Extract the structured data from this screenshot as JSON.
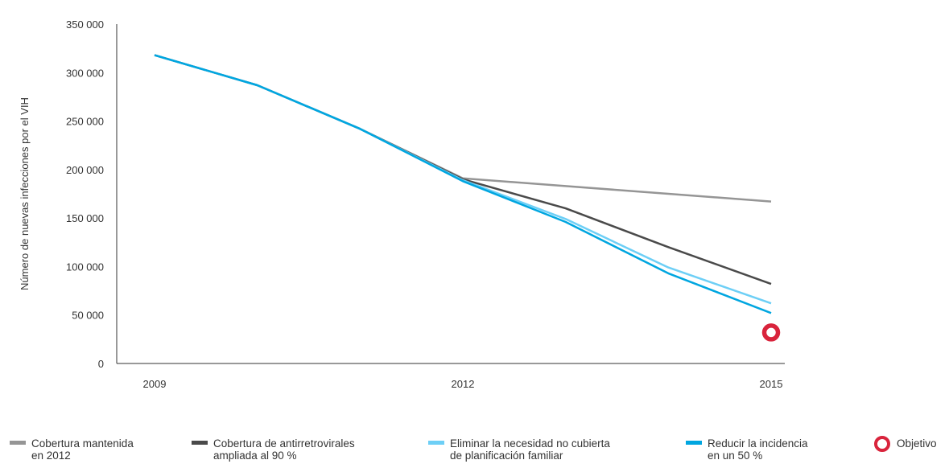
{
  "chart_data": {
    "type": "line",
    "ylabel": "Número de nuevas infecciones por el VIH",
    "xlabel": "",
    "title": "",
    "x": [
      2009,
      2010,
      2011,
      2012,
      2013,
      2014,
      2015
    ],
    "x_tick_labels": [
      "2009",
      "2012",
      "2015"
    ],
    "x_tick_values": [
      2009,
      2012,
      2015
    ],
    "ylim": [
      0,
      350000
    ],
    "y_ticks": [
      0,
      50000,
      100000,
      150000,
      200000,
      250000,
      300000,
      350000
    ],
    "y_tick_labels": [
      "0",
      "50 000",
      "100 000",
      "150 000",
      "200 000",
      "250 000",
      "300 000",
      "350 000"
    ],
    "grid": false,
    "legend_position": "bottom",
    "series": [
      {
        "name": "Cobertura mantenida\nen 2012",
        "color": "#959595",
        "values": [
          318000,
          287000,
          242000,
          191000,
          183000,
          175000,
          167000
        ]
      },
      {
        "name": "Cobertura de antirretrovirales\nampliada al 90 %",
        "color": "#4a4a4a",
        "values": [
          318000,
          287000,
          242000,
          190000,
          160000,
          120000,
          82000
        ]
      },
      {
        "name": "Eliminar la necesidad no cubierta\nde planificación familiar",
        "color": "#6dcff6",
        "values": [
          318000,
          287000,
          242000,
          189000,
          149000,
          99000,
          62000
        ]
      },
      {
        "name": "Reducir la incidencia\nen un 50 %",
        "color": "#00a6e0",
        "values": [
          318000,
          287000,
          242000,
          188000,
          146000,
          93000,
          52000
        ]
      }
    ],
    "target": {
      "name": "Objetivo",
      "x": 2015,
      "y": 32000,
      "color": "#d9243c"
    }
  }
}
